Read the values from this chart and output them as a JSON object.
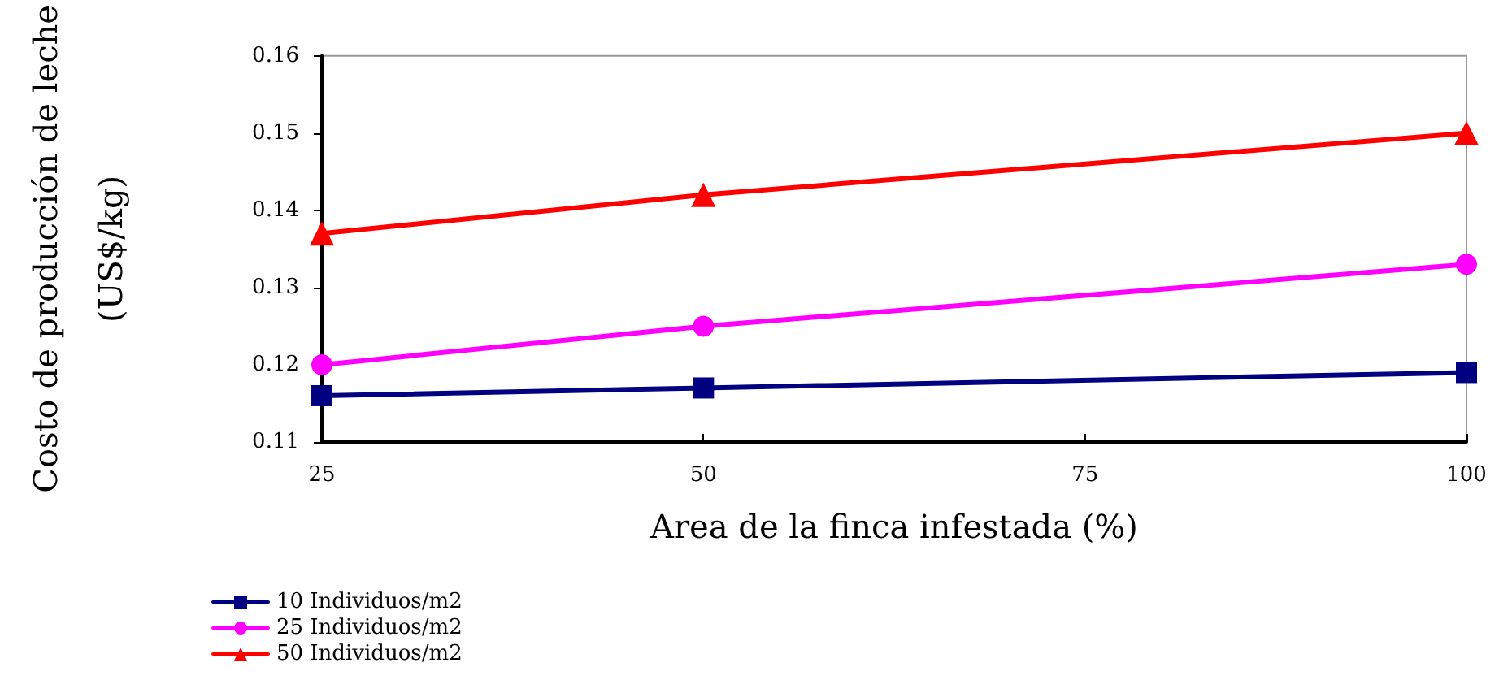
{
  "chart_data": {
    "type": "line",
    "xlabel": "Area de la finca infestada (%)",
    "ylabel": "Costo de producción de leche\n(US$/kg)",
    "x": [
      25,
      50,
      100
    ],
    "series": [
      {
        "name": "10 Individuos/m2",
        "color": "#000080",
        "marker": "square",
        "values": [
          0.116,
          0.117,
          0.119
        ]
      },
      {
        "name": "25 Individuos/m2",
        "color": "#ff00ff",
        "marker": "circle",
        "values": [
          0.12,
          0.125,
          0.133
        ]
      },
      {
        "name": "50 Individuos/m2",
        "color": "#ff0000",
        "marker": "triangle",
        "values": [
          0.137,
          0.142,
          0.15
        ]
      }
    ],
    "xlim": [
      25,
      100
    ],
    "xticks": [
      25,
      50,
      75,
      100
    ],
    "ylim": [
      0.11,
      0.16
    ],
    "yticks": [
      0.11,
      0.12,
      0.13,
      0.14,
      0.15,
      0.16
    ],
    "grid": false,
    "legend": "bottom left",
    "line_style": "solid"
  }
}
